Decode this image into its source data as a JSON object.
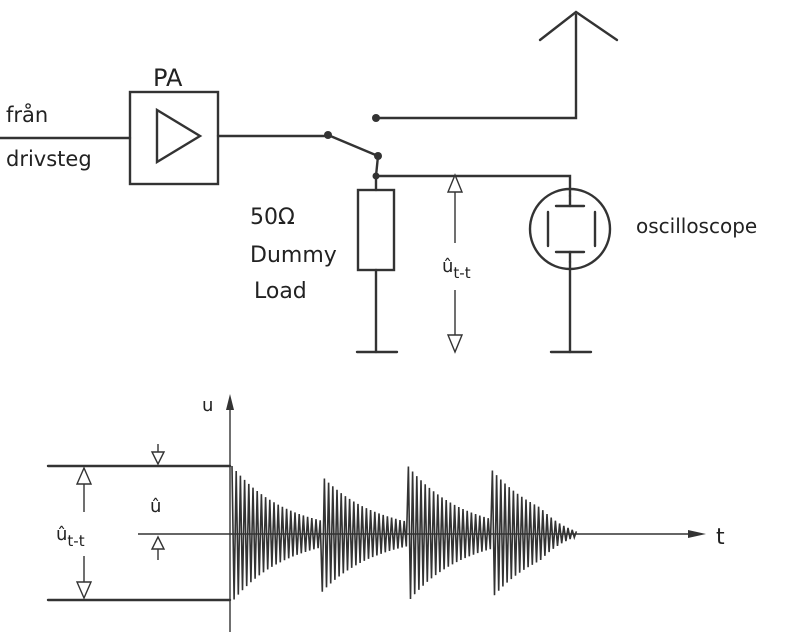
{
  "schematic": {
    "input_label_line1": "från",
    "input_label_line2": "drivsteg",
    "amplifier_label": "PA",
    "load_label_line1": "50Ω",
    "load_label_line2": "Dummy",
    "load_label_line3": "Load",
    "voltage_label_main": "û",
    "voltage_label_sub": "t-t",
    "scope_label": "oscilloscope"
  },
  "waveform": {
    "y_axis_label": "u",
    "x_axis_label": "t",
    "peak_label": "û",
    "pp_label_main": "û",
    "pp_label_sub": "t-t"
  }
}
